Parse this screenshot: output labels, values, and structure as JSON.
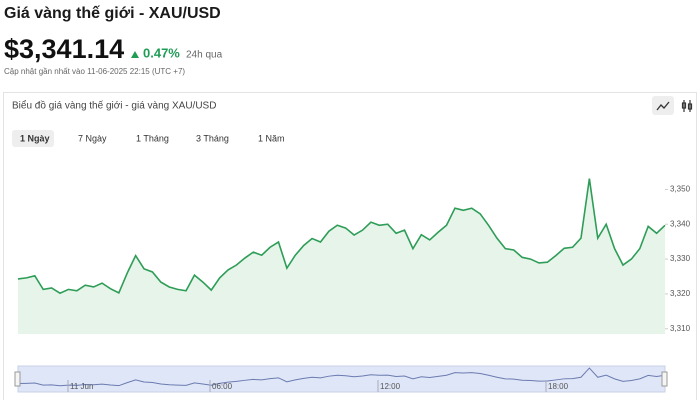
{
  "header": {
    "title": "Giá vàng thế giới - XAU/USD",
    "price": "$3,341.14",
    "change": "0.47%",
    "period": "24h qua",
    "updated": "Cập nhật gần nhất vào 11-06-2025 22:15 (UTC +7)"
  },
  "panel": {
    "title": "Biểu đồ giá vàng thế giới - giá vàng XAU/USD",
    "tabs": [
      "1 Ngày",
      "7 Ngày",
      "1 Tháng",
      "3 Tháng",
      "1 Năm"
    ]
  },
  "chart_data": {
    "type": "line",
    "color": "#2e9d57",
    "values": [
      3324.3,
      3324.6,
      3325.2,
      3321.3,
      3321.7,
      3320.2,
      3321.3,
      3320.9,
      3322.5,
      3322.0,
      3323.1,
      3321.5,
      3320.3,
      3326.0,
      3331.0,
      3327.2,
      3326.3,
      3323.4,
      3322.0,
      3321.3,
      3320.9,
      3325.4,
      3323.4,
      3321.1,
      3324.6,
      3326.9,
      3328.3,
      3330.3,
      3332.0,
      3331.1,
      3333.4,
      3334.9,
      3327.4,
      3331.1,
      3333.9,
      3335.9,
      3334.9,
      3338.0,
      3339.7,
      3338.9,
      3336.9,
      3338.3,
      3340.6,
      3339.7,
      3340.0,
      3337.4,
      3338.3,
      3333.0,
      3337.0,
      3335.5,
      3337.7,
      3339.7,
      3344.6,
      3344.0,
      3344.6,
      3343.0,
      3339.7,
      3336.0,
      3333.0,
      3332.6,
      3330.5,
      3330.0,
      3328.9,
      3329.1,
      3331.0,
      3333.1,
      3333.4,
      3336.0,
      3353.1,
      3336.0,
      3340.0,
      3333.0,
      3328.3,
      3330.0,
      3333.0,
      3339.4,
      3337.4,
      3339.7
    ],
    "ylim": [
      3308.5,
      3357
    ],
    "yticks": [
      {
        "value": 3310,
        "label": "3,310"
      },
      {
        "value": 3320,
        "label": "3,320"
      },
      {
        "value": 3330,
        "label": "3,330"
      },
      {
        "value": 3340,
        "label": "3,340"
      },
      {
        "value": 3350,
        "label": "3,350"
      }
    ],
    "navigator_ticks": [
      "11 Jun",
      "06:00",
      "12:00",
      "18:00"
    ]
  }
}
